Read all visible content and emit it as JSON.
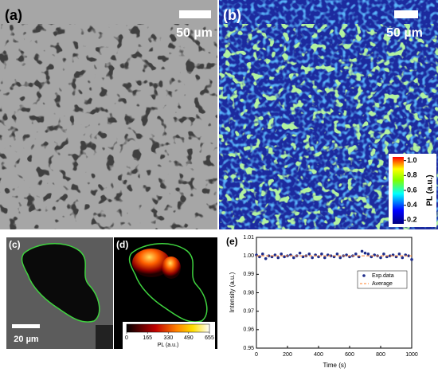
{
  "panels": [
    {
      "label": "(a)",
      "scale_bar": "50 µm"
    },
    {
      "label": "(b)",
      "scale_bar": "50 µm",
      "colorbar": {
        "label": "PL (a.u.)",
        "lim": [
          0.15,
          1.05
        ],
        "ticks": [
          {
            "value": 1,
            "label": "1.0"
          },
          0.8,
          0.6,
          0.4,
          0.2
        ]
      }
    },
    {
      "label": "(c)",
      "scale_bar": "20 µm"
    },
    {
      "label": "(d)",
      "colorbar": {
        "label": "PL (a.u.)",
        "lim": [
          0,
          655
        ],
        "ticks": [
          0,
          165,
          330,
          490,
          655
        ]
      }
    },
    {
      "label": "(e)"
    }
  ],
  "chart_data": {
    "type": "scatter",
    "xlabel": "Time (s)",
    "ylabel": "Intensity (a.u.)",
    "xlim": [
      0,
      1000
    ],
    "xticks": [
      0,
      200,
      400,
      600,
      800,
      1000
    ],
    "ylim": [
      0.95,
      1.01
    ],
    "yticks": [
      0.95,
      0.96,
      0.97,
      0.98,
      0.99,
      {
        "value": 1,
        "label": "1.00"
      },
      1.01
    ],
    "legend": "upper right",
    "series": [
      {
        "name": "Exp.data",
        "color": "#1f2d8a",
        "style": "dots",
        "x": [
          0,
          20,
          40,
          60,
          80,
          100,
          120,
          140,
          160,
          180,
          200,
          220,
          240,
          260,
          280,
          300,
          320,
          340,
          360,
          380,
          400,
          420,
          440,
          460,
          480,
          500,
          520,
          540,
          560,
          580,
          600,
          620,
          640,
          660,
          680,
          700,
          720,
          740,
          760,
          780,
          800,
          820,
          840,
          860,
          880,
          900,
          920,
          940,
          960,
          980,
          1000
        ],
        "values": [
          1.0005,
          0.9995,
          1.001,
          0.9985,
          1.0,
          0.9995,
          1.0005,
          0.999,
          1.001,
          0.9995,
          1.0,
          1.0005,
          0.999,
          1.0,
          1.0015,
          0.9995,
          1.0,
          1.001,
          0.999,
          1.0005,
          0.9995,
          1.001,
          0.999,
          1.0005,
          1.0,
          0.9995,
          1.001,
          0.999,
          1.0,
          1.0005,
          0.9995,
          1.0,
          1.001,
          0.9995,
          1.0025,
          1.0015,
          1.001,
          0.9995,
          1.0005,
          1.0,
          0.999,
          1.001,
          0.9995,
          1.0,
          1.0005,
          0.9995,
          1.001,
          0.999,
          1.0005,
          1.0,
          0.998
        ]
      },
      {
        "name": "Average",
        "color": "#ff7f2a",
        "style": "dashed",
        "x": [
          0,
          1000
        ],
        "values": [
          1,
          1
        ]
      }
    ]
  }
}
